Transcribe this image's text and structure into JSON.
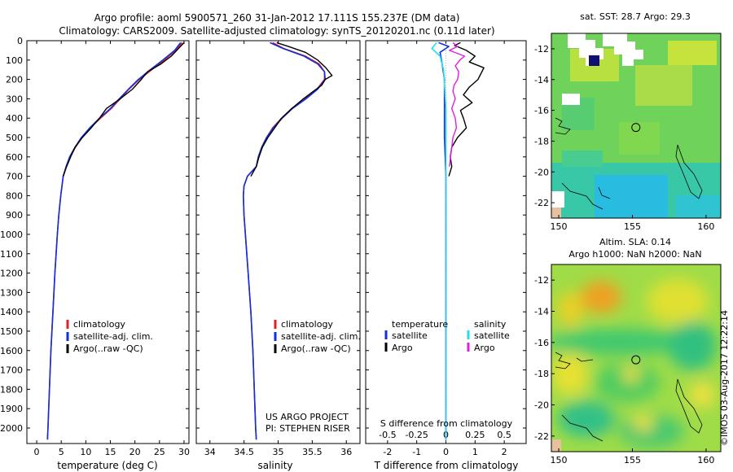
{
  "title_line1": "Argo profile: aoml 5900571_260 31-Jan-2012 17.111S 155.237E (DM data)",
  "title_line2": "Climatology: CARS2009. Satellite-adjusted climatology: synTS_20120201.nc (0.11d later)",
  "depth_ticks": [
    0,
    100,
    200,
    300,
    400,
    500,
    600,
    700,
    800,
    900,
    1000,
    1100,
    1200,
    1300,
    1400,
    1500,
    1600,
    1700,
    1800,
    1900,
    2000
  ],
  "credit_line1": "US ARGO PROJECT",
  "credit_line2": "PI: STEPHEN RISER",
  "watermark": "©IMOS 03-Aug-2017 12:22:14",
  "colors": {
    "climatology": "#e02020",
    "satellite": "#1030e0",
    "argo": "#000000",
    "sat_s": "#20e0e8",
    "argo_s": "#e020e0"
  },
  "chart_data": [
    {
      "type": "line",
      "id": "temperature",
      "xlabel": "temperature (deg C)",
      "xlim": [
        -2,
        31
      ],
      "xticks": [
        0,
        5,
        10,
        15,
        20,
        25,
        30
      ],
      "ylim": [
        2080,
        0
      ],
      "legend": [
        "climatology",
        "satellite-adj. clim.",
        "Argo(..raw -QC)"
      ],
      "series": [
        {
          "name": "climatology",
          "depth": [
            10,
            50,
            100,
            150,
            200,
            250,
            300,
            350,
            400,
            450,
            500,
            550,
            600,
            650,
            700,
            800,
            900,
            1000,
            1200,
            1400,
            1600,
            1800,
            2000,
            2060
          ],
          "values": [
            29.6,
            28.3,
            26.0,
            23.4,
            20.9,
            18.8,
            17.0,
            15.2,
            13.0,
            10.9,
            9.2,
            7.9,
            6.8,
            6.0,
            5.4,
            4.9,
            4.5,
            4.2,
            3.7,
            3.3,
            2.9,
            2.6,
            2.3,
            2.2
          ]
        },
        {
          "name": "satellite-adj. clim.",
          "depth": [
            10,
            50,
            100,
            150,
            200,
            250,
            300,
            350,
            400,
            450,
            500,
            550,
            600,
            650,
            700,
            800,
            900,
            1000,
            1200,
            1400,
            1600,
            1800,
            2000,
            2060
          ],
          "values": [
            29.3,
            28.1,
            25.7,
            23.1,
            20.7,
            18.7,
            16.8,
            15.0,
            12.8,
            10.8,
            9.1,
            7.8,
            6.7,
            6.0,
            5.4,
            4.9,
            4.5,
            4.2,
            3.7,
            3.3,
            2.9,
            2.6,
            2.3,
            2.2
          ]
        },
        {
          "name": "Argo",
          "depth": [
            10,
            40,
            80,
            120,
            160,
            200,
            250,
            300,
            350,
            400,
            450,
            500,
            550,
            600,
            650,
            700
          ],
          "values": [
            30.0,
            28.9,
            27.4,
            25.3,
            22.6,
            21.3,
            19.5,
            17.0,
            14.2,
            12.8,
            11.1,
            9.3,
            7.8,
            6.9,
            6.1,
            5.4
          ]
        }
      ]
    },
    {
      "type": "line",
      "id": "salinity",
      "xlabel": "salinity",
      "xlim": [
        33.8,
        36.2
      ],
      "xticks": [
        34,
        34.5,
        35,
        35.5,
        36
      ],
      "ylim": [
        2080,
        0
      ],
      "legend": [
        "climatology",
        "satellite-adj. clim.",
        "Argo(..raw -QC)"
      ],
      "series": [
        {
          "name": "climatology",
          "depth": [
            10,
            40,
            80,
            120,
            160,
            200,
            250,
            300,
            350,
            400,
            450,
            500,
            550,
            600,
            650,
            700,
            750,
            800,
            900,
            1000,
            1200,
            1400,
            1600,
            1800,
            2000,
            2060
          ],
          "values": [
            34.92,
            35.08,
            35.4,
            35.6,
            35.68,
            35.68,
            35.57,
            35.4,
            35.2,
            35.05,
            34.92,
            34.83,
            34.76,
            34.71,
            34.68,
            34.55,
            34.5,
            34.49,
            34.5,
            34.52,
            34.56,
            34.6,
            34.63,
            34.65,
            34.67,
            34.68
          ]
        },
        {
          "name": "satellite-adj. clim.",
          "depth": [
            10,
            40,
            80,
            120,
            160,
            200,
            250,
            300,
            350,
            400,
            450,
            500,
            550,
            600,
            650,
            700,
            750,
            800,
            900,
            1000,
            1200,
            1400,
            1600,
            1800,
            2000,
            2060
          ],
          "values": [
            34.88,
            35.07,
            35.38,
            35.58,
            35.68,
            35.69,
            35.58,
            35.41,
            35.21,
            35.06,
            34.93,
            34.83,
            34.76,
            34.71,
            34.68,
            34.55,
            34.5,
            34.49,
            34.5,
            34.52,
            34.56,
            34.6,
            34.63,
            34.65,
            34.67,
            34.68
          ]
        },
        {
          "name": "Argo",
          "depth": [
            10,
            30,
            60,
            100,
            140,
            180,
            200,
            230,
            260,
            300,
            350,
            400,
            450,
            500,
            550,
            600,
            650,
            700
          ],
          "values": [
            34.98,
            35.15,
            35.4,
            35.58,
            35.7,
            35.79,
            35.69,
            35.64,
            35.52,
            35.37,
            35.2,
            35.05,
            34.95,
            34.85,
            34.77,
            34.72,
            34.68,
            34.6
          ]
        }
      ]
    },
    {
      "type": "line",
      "id": "difference",
      "xlabel": "T difference from climatology",
      "xlabel_top": "S difference from climatology",
      "xlim": [
        -2.75,
        2.75
      ],
      "xticks": [
        -2,
        -1,
        0,
        1,
        2
      ],
      "xticks_s": [
        -0.5,
        -0.25,
        0,
        0.25,
        0.5
      ],
      "ylim": [
        2080,
        0
      ],
      "legend_t": {
        "heading": "temperature",
        "items": [
          "satellite",
          "Argo"
        ]
      },
      "legend_s": {
        "heading": "salinity",
        "items": [
          "satellite",
          "Argo"
        ]
      },
      "series": [
        {
          "name": "T satellite",
          "depth": [
            10,
            30,
            60,
            100,
            150,
            200,
            300,
            400,
            500,
            700,
            1000,
            1500,
            2060
          ],
          "values": [
            -0.25,
            0.1,
            -0.2,
            -0.15,
            -0.1,
            -0.05,
            -0.05,
            -0.05,
            -0.05,
            0.0,
            0.0,
            0.0,
            0.0
          ]
        },
        {
          "name": "T Argo",
          "depth": [
            10,
            25,
            50,
            80,
            110,
            140,
            170,
            200,
            240,
            280,
            320,
            360,
            400,
            450,
            500,
            550,
            600,
            650,
            700
          ],
          "values": [
            0.5,
            0.3,
            0.7,
            1.0,
            0.8,
            1.3,
            1.2,
            1.1,
            0.8,
            0.6,
            0.9,
            0.5,
            0.6,
            0.7,
            0.4,
            0.2,
            0.15,
            0.2,
            0.1
          ]
        },
        {
          "name": "S satellite",
          "depth": [
            10,
            40,
            80,
            150,
            250,
            350,
            450,
            600,
            800,
            1000,
            1500,
            2060
          ],
          "values": [
            -0.08,
            -0.12,
            -0.05,
            -0.02,
            -0.01,
            0.0,
            0.0,
            0.0,
            0.0,
            0.0,
            0.0,
            0.0
          ]
        },
        {
          "name": "S Argo",
          "depth": [
            10,
            30,
            50,
            80,
            100,
            130,
            160,
            200,
            230,
            260,
            300,
            350,
            400,
            450,
            500,
            550,
            600,
            650
          ],
          "values": [
            0.06,
            0.1,
            0.03,
            0.16,
            0.12,
            0.08,
            0.11,
            0.1,
            0.07,
            0.06,
            0.08,
            0.05,
            0.08,
            0.09,
            0.06,
            0.05,
            0.04,
            0.03
          ]
        }
      ]
    },
    {
      "type": "heatmap",
      "id": "sst_map",
      "title": "sat. SST: 28.7  Argo: 29.3",
      "xticks": [
        150,
        155,
        160
      ],
      "yticks": [
        -12,
        -14,
        -16,
        -18,
        -20,
        -22
      ],
      "xlim": [
        149.5,
        161
      ],
      "ylim": [
        -23,
        -11
      ],
      "marker": {
        "lon": 155.237,
        "lat": -17.111
      }
    },
    {
      "type": "heatmap",
      "id": "sla_map",
      "title_line1": "Altim. SLA: 0.14",
      "title_line2": "Argo h1000: NaN h2000: NaN",
      "xticks": [
        150,
        155,
        160
      ],
      "yticks": [
        -12,
        -14,
        -16,
        -18,
        -20,
        -22
      ],
      "xlim": [
        149.5,
        161
      ],
      "ylim": [
        -23,
        -11
      ],
      "marker": {
        "lon": 155.237,
        "lat": -17.111
      }
    }
  ]
}
